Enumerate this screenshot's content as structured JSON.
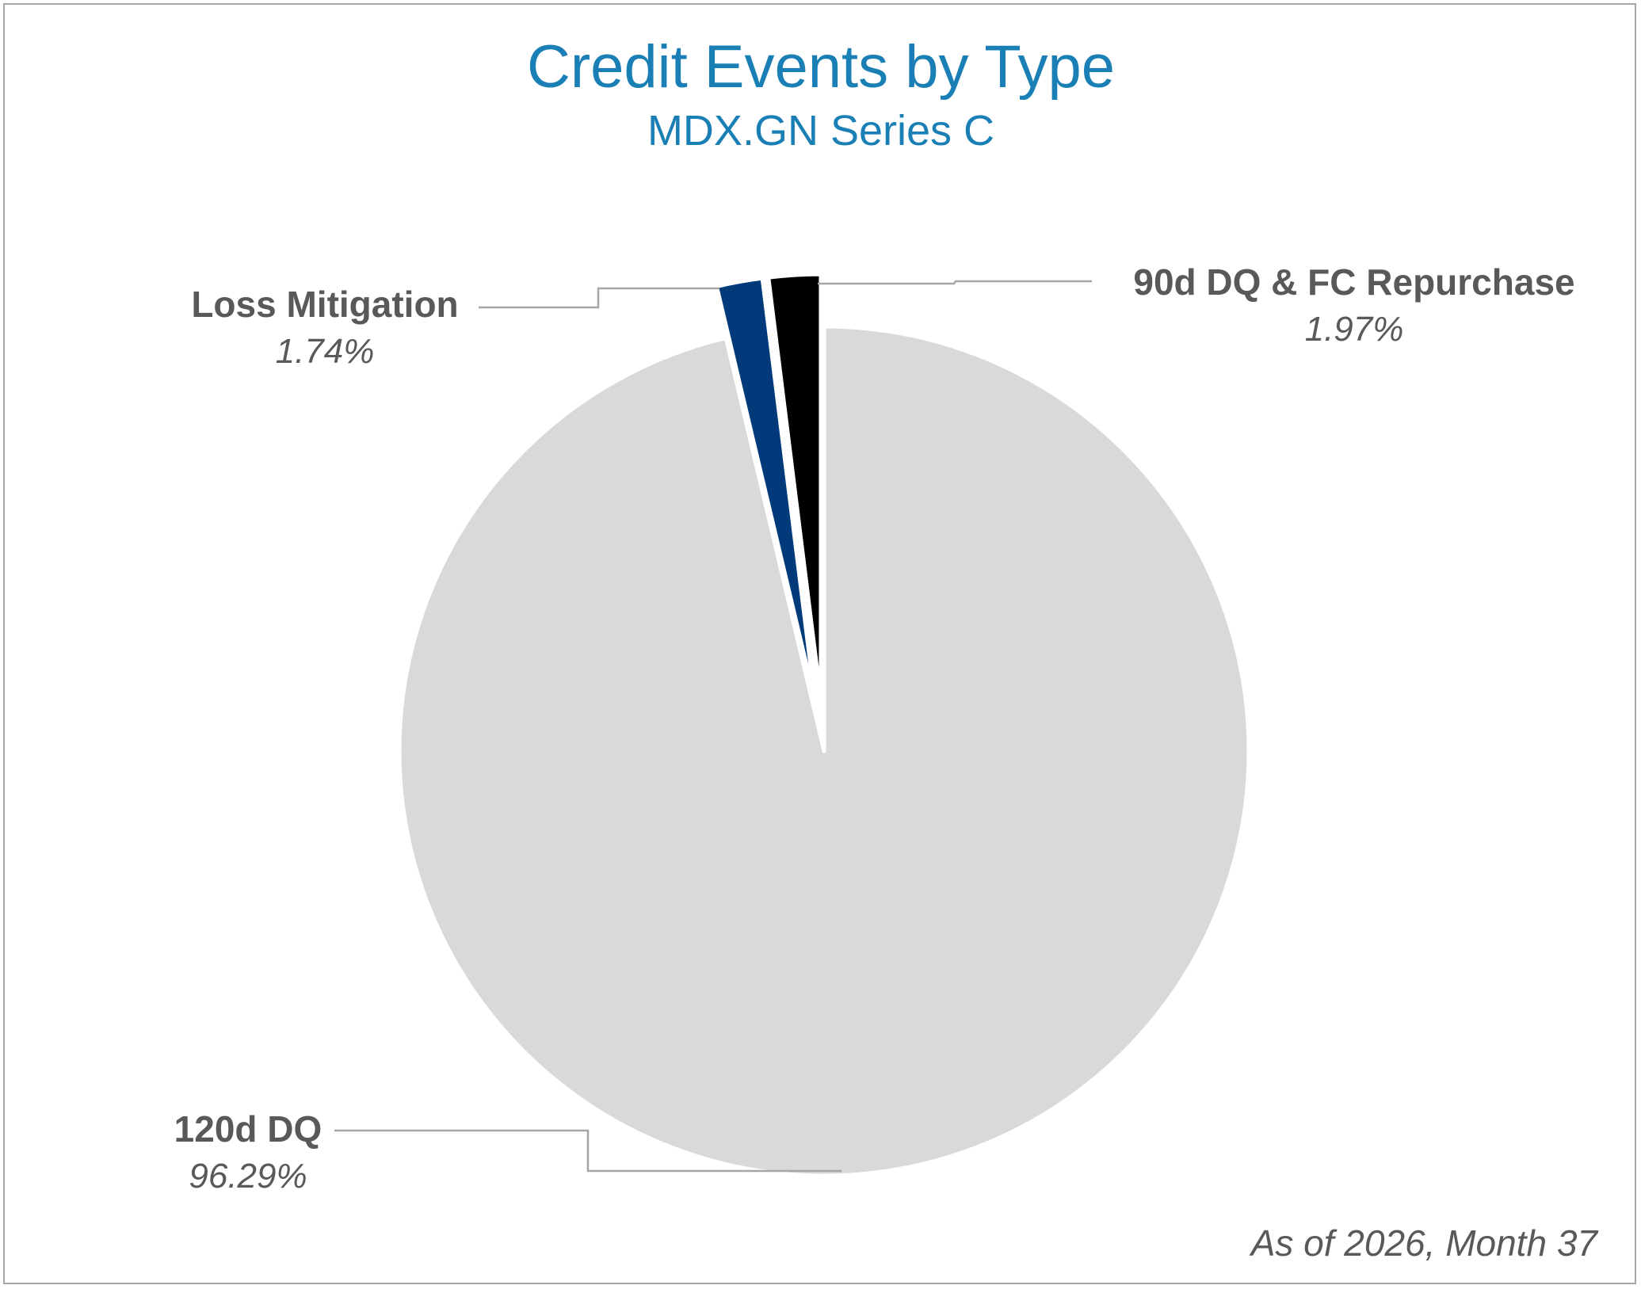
{
  "chart_data": {
    "type": "pie",
    "title": "Credit Events by Type",
    "subtitle": "MDX.GN Series C",
    "footnote": "As of  2026, Month 37",
    "start_angle_deg": 0,
    "direction": "counterclockwise",
    "slices": [
      {
        "label": "90d DQ & FC Repurchase",
        "value": 1.97,
        "display": "1.97%",
        "color": "#000000",
        "exploded": true
      },
      {
        "label": "Loss Mitigation",
        "value": 1.74,
        "display": "1.74%",
        "color": "#003a7a",
        "exploded": true
      },
      {
        "label": "120d DQ",
        "value": 96.29,
        "display": "96.29%",
        "color": "#d9d9d9",
        "exploded": false
      }
    ],
    "legend": "none",
    "data_labels": "outside with leader lines"
  }
}
